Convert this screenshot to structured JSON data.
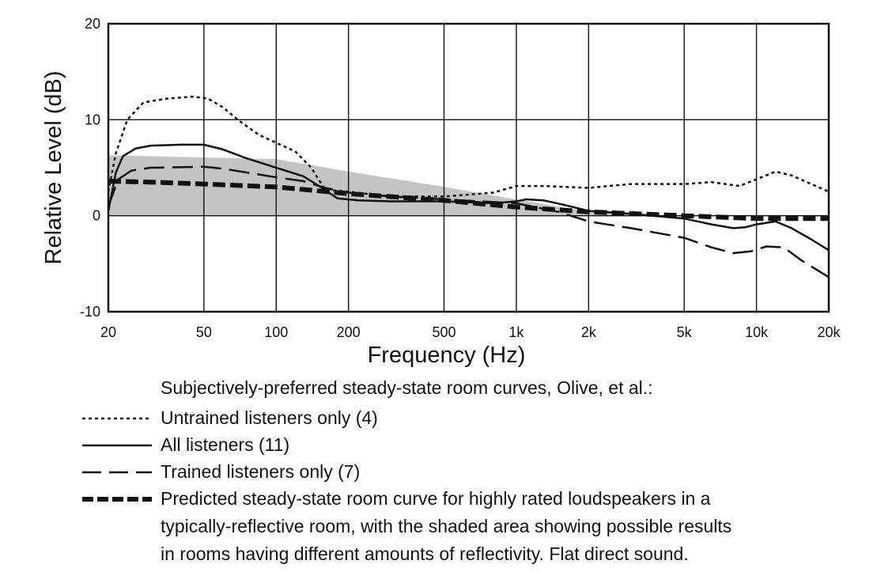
{
  "chart_data": {
    "type": "line",
    "xlabel": "Frequency (Hz)",
    "ylabel": "Relative Level (dB)",
    "x_scale": "log",
    "xlim": [
      20,
      20000
    ],
    "ylim": [
      -10,
      20
    ],
    "grid": true,
    "x_ticks": [
      {
        "value": 20,
        "label": "20"
      },
      {
        "value": 50,
        "label": "50"
      },
      {
        "value": 100,
        "label": "100"
      },
      {
        "value": 200,
        "label": "200"
      },
      {
        "value": 500,
        "label": "500"
      },
      {
        "value": 1000,
        "label": "1k"
      },
      {
        "value": 2000,
        "label": "2k"
      },
      {
        "value": 5000,
        "label": "5k"
      },
      {
        "value": 10000,
        "label": "10k"
      },
      {
        "value": 20000,
        "label": "20k"
      }
    ],
    "y_ticks": [
      {
        "value": -10,
        "label": "-10"
      },
      {
        "value": 0,
        "label": "0"
      },
      {
        "value": 10,
        "label": "10"
      },
      {
        "value": 20,
        "label": "20"
      }
    ],
    "shaded_band": {
      "upper": [
        [
          20,
          6.3
        ],
        [
          100,
          5.9
        ],
        [
          200,
          4.6
        ],
        [
          500,
          3.0
        ],
        [
          1000,
          1.7
        ],
        [
          2000,
          0.4
        ],
        [
          3000,
          0.1
        ],
        [
          20000,
          0.1
        ]
      ],
      "lower": [
        [
          20,
          0.0
        ],
        [
          20000,
          0.0
        ]
      ],
      "color": "#c4c4c4"
    },
    "series": [
      {
        "name": "Untrained listeners only (4)",
        "style": "dotted",
        "points": [
          [
            20,
            2.5
          ],
          [
            21.5,
            6.5
          ],
          [
            24,
            10.0
          ],
          [
            28,
            11.8
          ],
          [
            35,
            12.2
          ],
          [
            45,
            12.4
          ],
          [
            52,
            12.2
          ],
          [
            60,
            11.3
          ],
          [
            70,
            9.9
          ],
          [
            85,
            8.4
          ],
          [
            100,
            7.6
          ],
          [
            120,
            6.7
          ],
          [
            140,
            5.0
          ],
          [
            160,
            2.7
          ],
          [
            200,
            2.5
          ],
          [
            300,
            2.0
          ],
          [
            500,
            2.0
          ],
          [
            800,
            2.4
          ],
          [
            1000,
            3.1
          ],
          [
            1300,
            3.1
          ],
          [
            2000,
            2.9
          ],
          [
            3000,
            3.3
          ],
          [
            5000,
            3.3
          ],
          [
            6500,
            3.5
          ],
          [
            8500,
            3.1
          ],
          [
            10000,
            3.8
          ],
          [
            12000,
            4.6
          ],
          [
            14000,
            4.2
          ],
          [
            20000,
            2.5
          ]
        ]
      },
      {
        "name": "All listeners (11)",
        "style": "solid",
        "points": [
          [
            20,
            0.5
          ],
          [
            21.5,
            4.5
          ],
          [
            23,
            6.2
          ],
          [
            26,
            7.0
          ],
          [
            30,
            7.3
          ],
          [
            40,
            7.4
          ],
          [
            50,
            7.4
          ],
          [
            60,
            6.9
          ],
          [
            75,
            6.0
          ],
          [
            100,
            5.0
          ],
          [
            130,
            4.1
          ],
          [
            155,
            2.9
          ],
          [
            180,
            1.8
          ],
          [
            220,
            1.6
          ],
          [
            300,
            1.5
          ],
          [
            500,
            1.5
          ],
          [
            800,
            1.3
          ],
          [
            1000,
            1.5
          ],
          [
            1100,
            1.7
          ],
          [
            1300,
            1.6
          ],
          [
            1600,
            1.1
          ],
          [
            2000,
            0.5
          ],
          [
            3000,
            0.2
          ],
          [
            5000,
            -0.3
          ],
          [
            6500,
            -0.9
          ],
          [
            8000,
            -1.3
          ],
          [
            9000,
            -1.2
          ],
          [
            10000,
            -0.9
          ],
          [
            12000,
            -0.6
          ],
          [
            14000,
            -1.3
          ],
          [
            17000,
            -2.5
          ],
          [
            20000,
            -3.6
          ]
        ]
      },
      {
        "name": "Trained listeners only (7)",
        "style": "dashed",
        "points": [
          [
            20,
            1.0
          ],
          [
            22,
            3.8
          ],
          [
            25,
            4.7
          ],
          [
            30,
            5.0
          ],
          [
            50,
            5.1
          ],
          [
            60,
            4.9
          ],
          [
            80,
            4.4
          ],
          [
            100,
            4.0
          ],
          [
            130,
            3.6
          ],
          [
            160,
            2.9
          ],
          [
            200,
            2.4
          ],
          [
            300,
            2.0
          ],
          [
            500,
            1.7
          ],
          [
            1000,
            1.3
          ],
          [
            1500,
            0.4
          ],
          [
            2000,
            -0.6
          ],
          [
            3000,
            -1.3
          ],
          [
            5000,
            -2.3
          ],
          [
            6500,
            -3.3
          ],
          [
            8000,
            -3.9
          ],
          [
            9500,
            -3.7
          ],
          [
            11000,
            -3.2
          ],
          [
            13000,
            -3.3
          ],
          [
            15500,
            -4.7
          ],
          [
            20000,
            -6.4
          ]
        ]
      },
      {
        "name": "Predicted steady-state room curve for highly rated loudspeakers in a typically-reflective room, with the shaded area showing possible results in rooms having different amounts of reflectivity.  Flat direct sound.",
        "style": "bold-dashed",
        "points": [
          [
            20,
            3.6
          ],
          [
            30,
            3.5
          ],
          [
            50,
            3.3
          ],
          [
            100,
            3.0
          ],
          [
            200,
            2.3
          ],
          [
            500,
            1.6
          ],
          [
            1000,
            0.9
          ],
          [
            2000,
            0.4
          ],
          [
            5000,
            0.0
          ],
          [
            10000,
            -0.3
          ],
          [
            20000,
            -0.3
          ]
        ]
      }
    ]
  },
  "legend": {
    "title": "Subjectively-preferred steady-state room curves, Olive, et al.:",
    "items": [
      {
        "label": "Untrained listeners only (4)"
      },
      {
        "label": "All listeners (11)"
      },
      {
        "label": "Trained listeners only (7)"
      },
      {
        "label": "Predicted steady-state room curve for highly rated loudspeakers in a",
        "label2": "typically-reflective room, with the shaded area showing possible results",
        "label3": "in rooms having different amounts of reflectivity.  Flat direct sound."
      }
    ]
  }
}
